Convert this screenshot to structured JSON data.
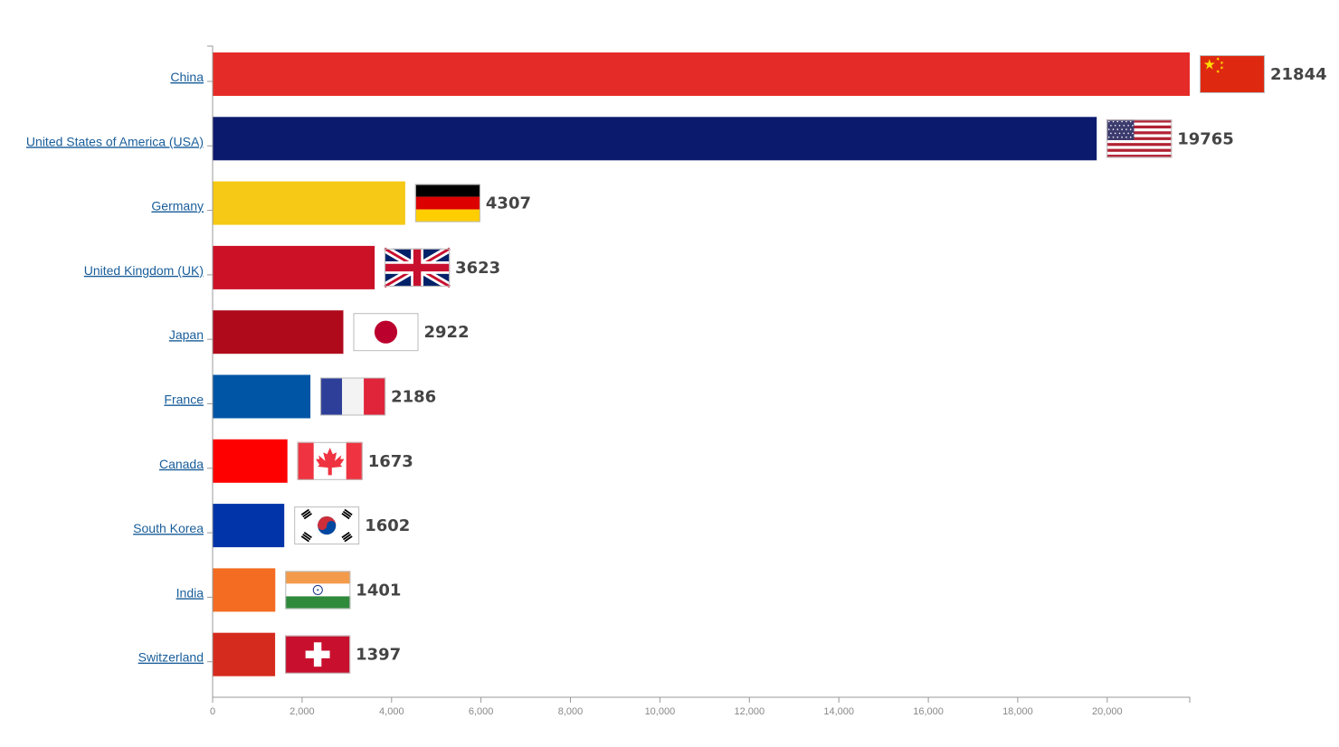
{
  "chart_data": {
    "type": "bar",
    "orientation": "horizontal",
    "categories": [
      "China",
      "United States of America (USA)",
      "Germany",
      "United Kingdom (UK)",
      "Japan",
      "France",
      "Canada",
      "South Korea",
      "India",
      "Switzerland"
    ],
    "values": [
      21844,
      19765,
      4307,
      3623,
      2922,
      2186,
      1673,
      1602,
      1401,
      1397
    ],
    "bar_colors": [
      "#e52b27",
      "#0c1a6e",
      "#f5c915",
      "#cc1126",
      "#af0a1c",
      "#0055a5",
      "#ff0000",
      "#0034a8",
      "#f36c21",
      "#d52b1e"
    ],
    "flags": [
      "china-flag",
      "usa-flag",
      "germany-flag",
      "uk-flag",
      "japan-flag",
      "france-flag",
      "canada-flag",
      "south-korea-flag",
      "india-flag",
      "switzerland-flag"
    ],
    "x_ticks": [
      0,
      2000,
      4000,
      6000,
      8000,
      10000,
      12000,
      14000,
      16000,
      18000,
      20000
    ],
    "x_tick_labels": [
      "0",
      "2,000",
      "4,000",
      "6,000",
      "8,000",
      "10,000",
      "12,000",
      "14,000",
      "16,000",
      "18,000",
      "20,000"
    ],
    "xlim": [
      0,
      21844
    ],
    "title": "",
    "xlabel": "",
    "ylabel": "",
    "grid": false,
    "legend": "none"
  }
}
